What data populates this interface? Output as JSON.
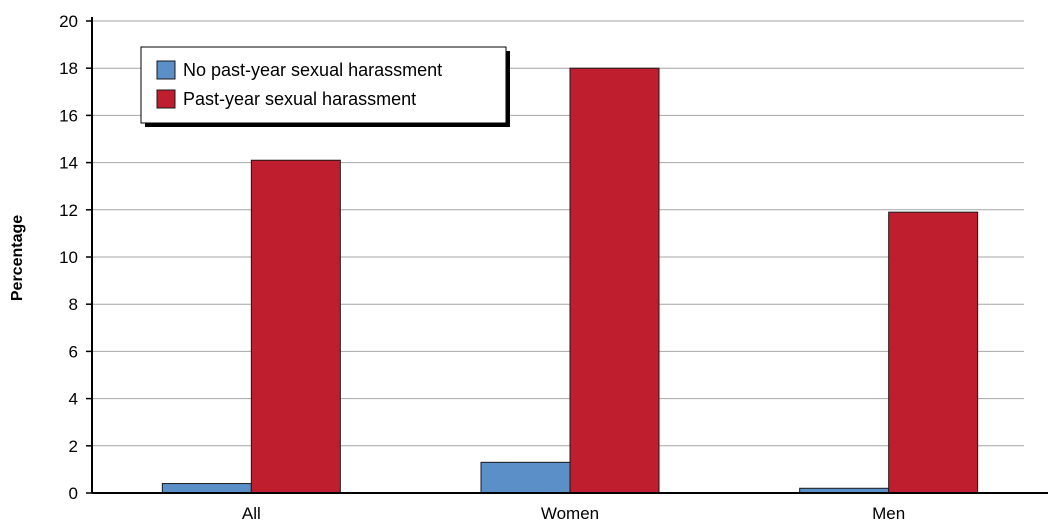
{
  "chart_data": {
    "type": "bar",
    "categories": [
      "All",
      "Women",
      "Men"
    ],
    "series": [
      {
        "name": "No past-year sexual harassment",
        "values": [
          0.4,
          1.3,
          0.2
        ],
        "color": "#5b8fc7"
      },
      {
        "name": "Past-year sexual harassment",
        "values": [
          14.1,
          18.0,
          11.9
        ],
        "color": "#be1e2d"
      }
    ],
    "ylabel": "Percentage",
    "xlabel": "",
    "ylim": [
      0,
      20
    ],
    "yticks": [
      "0",
      "2",
      "4",
      "6",
      "8",
      "10",
      "12",
      "14",
      "16",
      "18",
      "20"
    ],
    "grid": true,
    "legend_position": "top-left"
  }
}
